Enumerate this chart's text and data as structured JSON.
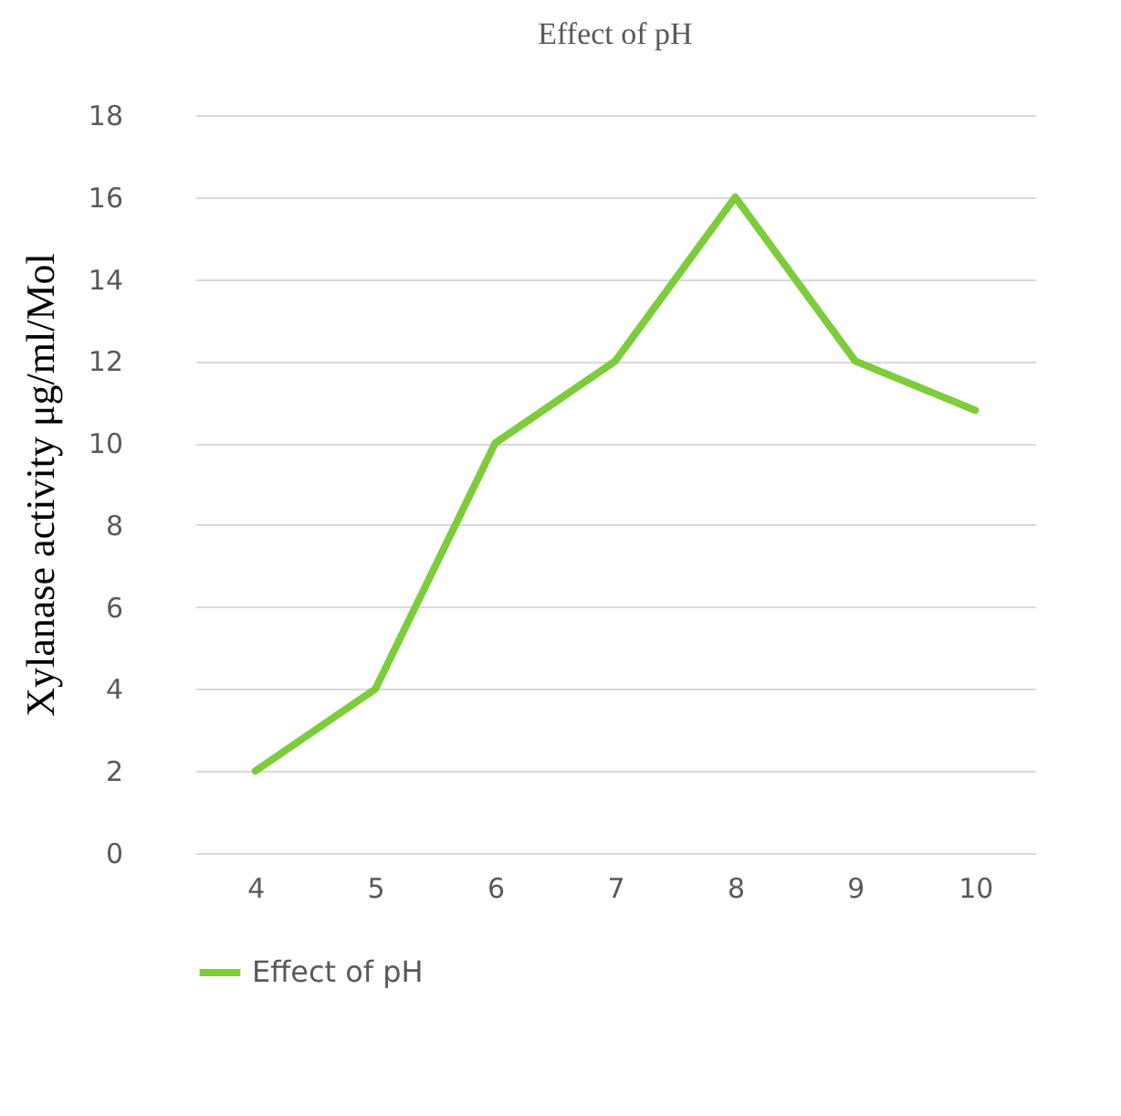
{
  "chart_data": {
    "type": "line",
    "title": "Effect of pH",
    "ylabel": "Xylanase activity μg/ml/Mol",
    "categories": [
      "4",
      "5",
      "6",
      "7",
      "8",
      "9",
      "10"
    ],
    "series": [
      {
        "name": "Effect of pH",
        "color": "#7dcc3b",
        "values": [
          2,
          4,
          10,
          12,
          16,
          12,
          10.8
        ]
      }
    ],
    "ylim": [
      0,
      18
    ],
    "yticks": [
      0,
      2,
      4,
      6,
      8,
      10,
      12,
      14,
      16,
      18
    ],
    "grid": "y",
    "legend": "bottom",
    "line_style": "solid"
  }
}
